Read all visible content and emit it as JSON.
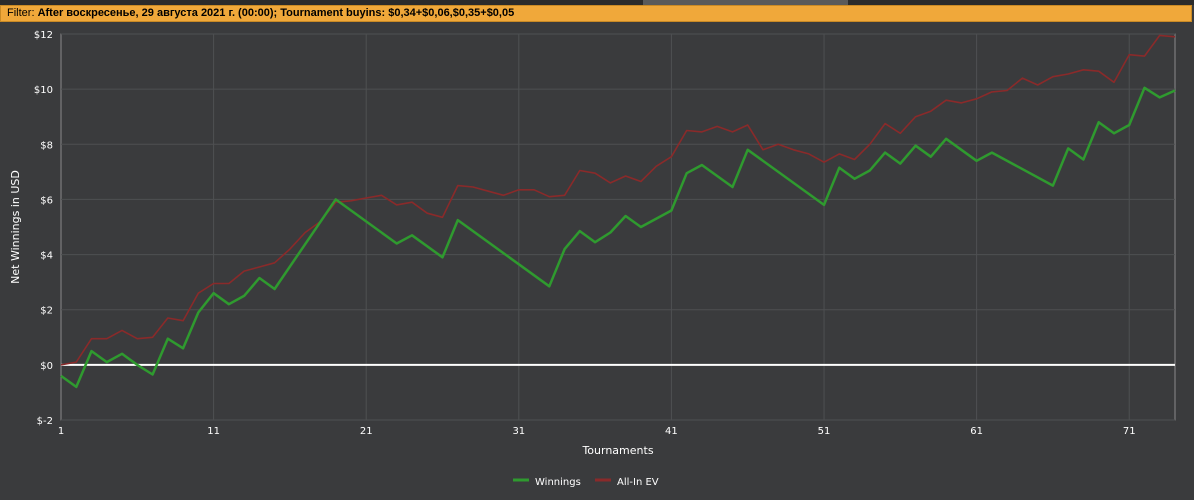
{
  "filter": {
    "label": "Filter:",
    "text": "After воскресенье, 29 августа 2021 г. (00:00); Tournament buyins: $0,34+$0,06,$0,35+$0,05"
  },
  "chart_data": {
    "type": "line",
    "xlabel": "Tournaments",
    "ylabel": "Net Winnings in USD",
    "xlim": [
      1,
      74
    ],
    "ylim": [
      -2,
      12
    ],
    "x_ticks": [
      1,
      11,
      21,
      31,
      41,
      51,
      61,
      71
    ],
    "y_ticks": [
      -2,
      0,
      2,
      4,
      6,
      8,
      10,
      12
    ],
    "y_tick_labels": [
      "$-2",
      "$0",
      "$2",
      "$4",
      "$6",
      "$8",
      "$10",
      "$12"
    ],
    "grid": true,
    "legend_position": "bottom-center",
    "zero_line_color": "#ffffff",
    "series": [
      {
        "name": "Winnings",
        "color": "#2f9a2f",
        "x": [
          1,
          2,
          3,
          4,
          5,
          6,
          7,
          8,
          9,
          10,
          11,
          12,
          13,
          14,
          15,
          19,
          23,
          24,
          26,
          27,
          33,
          34,
          35,
          36,
          37,
          38,
          39,
          41,
          42,
          43,
          45,
          46,
          51,
          52,
          53,
          54,
          55,
          56,
          57,
          58,
          59,
          61,
          62,
          66,
          67,
          68,
          69,
          70,
          71,
          72,
          73,
          74
        ],
        "values": [
          -0.4,
          -0.8,
          0.5,
          0.1,
          0.4,
          0.0,
          -0.35,
          0.95,
          0.6,
          1.9,
          2.6,
          2.2,
          2.5,
          3.15,
          2.75,
          6.0,
          4.4,
          4.7,
          3.9,
          5.25,
          2.85,
          4.2,
          4.85,
          4.45,
          4.8,
          5.4,
          5.0,
          5.6,
          6.95,
          7.25,
          6.45,
          7.8,
          5.8,
          7.15,
          6.75,
          7.05,
          7.7,
          7.3,
          7.95,
          7.55,
          8.2,
          7.4,
          7.7,
          6.5,
          7.85,
          7.45,
          8.8,
          8.4,
          8.7,
          10.05,
          9.7,
          9.95
        ]
      },
      {
        "name": "All-In EV",
        "color": "#8a2a2a",
        "x": [
          1,
          2,
          3,
          4,
          5,
          6,
          7,
          8,
          9,
          10,
          11,
          12,
          13,
          14,
          15,
          16,
          17,
          18,
          19,
          20,
          21,
          22,
          23,
          24,
          25,
          26,
          27,
          28,
          29,
          30,
          31,
          32,
          33,
          34,
          35,
          36,
          37,
          38,
          39,
          40,
          41,
          42,
          43,
          44,
          45,
          46,
          47,
          48,
          49,
          50,
          51,
          52,
          53,
          54,
          55,
          56,
          57,
          58,
          59,
          60,
          61,
          62,
          63,
          64,
          65,
          66,
          67,
          68,
          69,
          70,
          71,
          72,
          73,
          74
        ],
        "values": [
          0.0,
          0.1,
          0.95,
          0.95,
          1.25,
          0.95,
          1.0,
          1.7,
          1.6,
          2.6,
          2.95,
          2.95,
          3.4,
          3.55,
          3.7,
          4.2,
          4.8,
          5.2,
          5.9,
          5.95,
          6.05,
          6.15,
          5.8,
          5.9,
          5.5,
          5.35,
          6.5,
          6.45,
          6.3,
          6.15,
          6.35,
          6.35,
          6.1,
          6.15,
          7.05,
          6.95,
          6.6,
          6.85,
          6.65,
          7.2,
          7.55,
          8.5,
          8.45,
          8.65,
          8.45,
          8.7,
          7.8,
          8.0,
          7.8,
          7.65,
          7.35,
          7.65,
          7.45,
          8.0,
          8.75,
          8.4,
          9.0,
          9.2,
          9.6,
          9.5,
          9.65,
          9.9,
          9.95,
          10.4,
          10.15,
          10.45,
          10.55,
          10.7,
          10.65,
          10.25,
          11.25,
          11.2,
          11.95,
          11.9
        ]
      }
    ]
  }
}
